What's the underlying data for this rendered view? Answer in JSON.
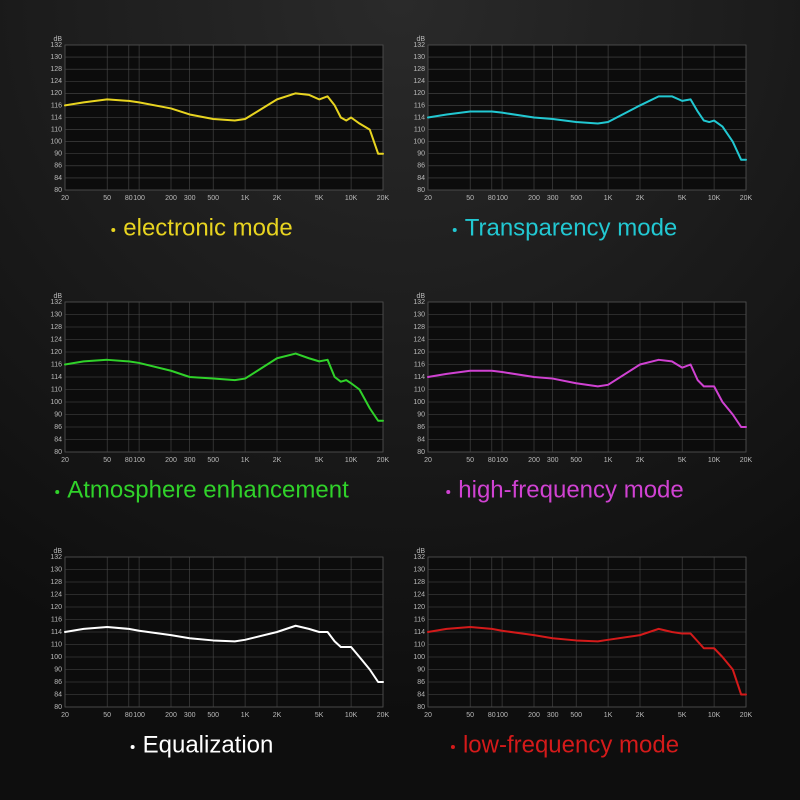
{
  "chart_data": [
    {
      "type": "line",
      "title": "electronic mode",
      "y_label": "dB",
      "x": [
        20,
        30,
        50,
        80,
        100,
        200,
        300,
        500,
        800,
        1000,
        2000,
        3000,
        4000,
        5000,
        6000,
        7000,
        8000,
        9000,
        10000,
        12000,
        15000,
        18000,
        20000
      ],
      "series": [
        {
          "color": "#e8d420",
          "values": [
            116,
            117,
            118,
            117.5,
            117,
            115.5,
            114.5,
            113.5,
            113,
            113.5,
            118,
            120,
            119.5,
            118,
            119,
            116,
            114,
            113,
            114,
            112,
            110,
            90,
            90
          ]
        }
      ],
      "xlim": [
        20,
        20000
      ],
      "x_log": true,
      "ylim": [
        80,
        132
      ],
      "yticks": [
        80,
        84,
        86,
        90,
        100,
        110,
        114,
        116,
        120,
        124,
        128,
        130,
        132
      ],
      "xticks": [
        20,
        50,
        80,
        100,
        200,
        300,
        500,
        {
          "value": 1000,
          "label": "1K"
        },
        {
          "value": 2000,
          "label": "2K"
        },
        {
          "value": 5000,
          "label": "5K"
        },
        {
          "value": 10000,
          "label": "10K"
        },
        {
          "value": 20000,
          "label": "20K"
        }
      ],
      "grid": true
    },
    {
      "type": "line",
      "title": "Transparency mode",
      "y_label": "dB",
      "x": [
        20,
        30,
        50,
        80,
        100,
        200,
        300,
        500,
        800,
        1000,
        2000,
        3000,
        4000,
        5000,
        6000,
        7000,
        8000,
        9000,
        10000,
        12000,
        15000,
        18000,
        20000
      ],
      "series": [
        {
          "color": "#22c8d2",
          "values": [
            114,
            114.5,
            115,
            115,
            114.8,
            114,
            113.5,
            112.5,
            112,
            112.5,
            116,
            119,
            119,
            117.5,
            118,
            115,
            113,
            112.5,
            113,
            111,
            100,
            88,
            88
          ]
        }
      ],
      "xlim": [
        20,
        20000
      ],
      "x_log": true,
      "ylim": [
        80,
        132
      ],
      "yticks": [
        80,
        84,
        86,
        90,
        100,
        110,
        114,
        116,
        120,
        124,
        128,
        130,
        132
      ],
      "xticks": [
        20,
        50,
        80,
        100,
        200,
        300,
        500,
        {
          "value": 1000,
          "label": "1K"
        },
        {
          "value": 2000,
          "label": "2K"
        },
        {
          "value": 5000,
          "label": "5K"
        },
        {
          "value": 10000,
          "label": "10K"
        },
        {
          "value": 20000,
          "label": "20K"
        }
      ],
      "grid": true
    },
    {
      "type": "line",
      "title": "Atmosphere enhancement",
      "y_label": "dB",
      "x": [
        20,
        30,
        50,
        80,
        100,
        200,
        300,
        500,
        800,
        1000,
        2000,
        3000,
        4000,
        5000,
        6000,
        7000,
        8000,
        9000,
        10000,
        12000,
        15000,
        18000,
        20000
      ],
      "series": [
        {
          "color": "#30d22a",
          "values": [
            116,
            117,
            117.5,
            117,
            116.5,
            115,
            114,
            113.5,
            113,
            113.5,
            118,
            119.5,
            118,
            117,
            117.5,
            114,
            112.5,
            113,
            112,
            110,
            95,
            88,
            88
          ]
        }
      ],
      "xlim": [
        20,
        20000
      ],
      "x_log": true,
      "ylim": [
        80,
        132
      ],
      "yticks": [
        80,
        84,
        86,
        90,
        100,
        110,
        114,
        116,
        120,
        124,
        128,
        130,
        132
      ],
      "xticks": [
        20,
        50,
        80,
        100,
        200,
        300,
        500,
        {
          "value": 1000,
          "label": "1K"
        },
        {
          "value": 2000,
          "label": "2K"
        },
        {
          "value": 5000,
          "label": "5K"
        },
        {
          "value": 10000,
          "label": "10K"
        },
        {
          "value": 20000,
          "label": "20K"
        }
      ],
      "grid": true
    },
    {
      "type": "line",
      "title": "high-frequency mode",
      "y_label": "dB",
      "x": [
        20,
        30,
        50,
        80,
        100,
        200,
        300,
        500,
        800,
        1000,
        2000,
        3000,
        4000,
        5000,
        6000,
        7000,
        8000,
        9000,
        10000,
        12000,
        15000,
        18000,
        20000
      ],
      "series": [
        {
          "color": "#d042d2",
          "values": [
            114,
            114.5,
            115,
            115,
            114.8,
            114,
            113.5,
            112,
            111,
            111.5,
            116,
            117.5,
            117,
            115.5,
            116,
            113,
            111,
            111,
            111,
            100,
            90,
            86,
            86
          ]
        }
      ],
      "xlim": [
        20,
        20000
      ],
      "x_log": true,
      "ylim": [
        80,
        132
      ],
      "yticks": [
        80,
        84,
        86,
        90,
        100,
        110,
        114,
        116,
        120,
        124,
        128,
        130,
        132
      ],
      "xticks": [
        20,
        50,
        80,
        100,
        200,
        300,
        500,
        {
          "value": 1000,
          "label": "1K"
        },
        {
          "value": 2000,
          "label": "2K"
        },
        {
          "value": 5000,
          "label": "5K"
        },
        {
          "value": 10000,
          "label": "10K"
        },
        {
          "value": 20000,
          "label": "20K"
        }
      ],
      "grid": true
    },
    {
      "type": "line",
      "title": "Equalization",
      "y_label": "dB",
      "x": [
        20,
        30,
        50,
        80,
        100,
        200,
        300,
        500,
        800,
        1000,
        2000,
        3000,
        4000,
        5000,
        6000,
        7000,
        8000,
        9000,
        10000,
        12000,
        15000,
        18000,
        20000
      ],
      "series": [
        {
          "color": "#ffffff",
          "values": [
            114,
            114.5,
            114.8,
            114.5,
            114.2,
            113,
            112,
            111.3,
            111,
            111.5,
            114,
            115,
            114.5,
            114,
            114,
            111,
            108,
            108,
            108,
            100,
            90,
            86,
            86
          ]
        }
      ],
      "xlim": [
        20,
        20000
      ],
      "x_log": true,
      "ylim": [
        80,
        132
      ],
      "yticks": [
        80,
        84,
        86,
        90,
        100,
        110,
        114,
        116,
        120,
        124,
        128,
        130,
        132
      ],
      "xticks": [
        20,
        50,
        80,
        100,
        200,
        300,
        500,
        {
          "value": 1000,
          "label": "1K"
        },
        {
          "value": 2000,
          "label": "2K"
        },
        {
          "value": 5000,
          "label": "5K"
        },
        {
          "value": 10000,
          "label": "10K"
        },
        {
          "value": 20000,
          "label": "20K"
        }
      ],
      "grid": true
    },
    {
      "type": "line",
      "title": "low-frequency mode",
      "y_label": "dB",
      "x": [
        20,
        30,
        50,
        80,
        100,
        200,
        300,
        500,
        800,
        1000,
        2000,
        3000,
        4000,
        5000,
        6000,
        7000,
        8000,
        9000,
        10000,
        12000,
        15000,
        18000,
        20000
      ],
      "series": [
        {
          "color": "#d41a1a",
          "values": [
            114,
            114.5,
            114.8,
            114.5,
            114.2,
            113,
            112,
            111.3,
            111,
            111.5,
            113,
            114.5,
            114,
            113.5,
            113.5,
            111,
            107,
            107,
            107,
            100,
            90,
            84,
            84
          ]
        }
      ],
      "xlim": [
        20,
        20000
      ],
      "x_log": true,
      "ylim": [
        80,
        132
      ],
      "yticks": [
        80,
        84,
        86,
        90,
        100,
        110,
        114,
        116,
        120,
        124,
        128,
        130,
        132
      ],
      "xticks": [
        20,
        50,
        80,
        100,
        200,
        300,
        500,
        {
          "value": 1000,
          "label": "1K"
        },
        {
          "value": 2000,
          "label": "2K"
        },
        {
          "value": 5000,
          "label": "5K"
        },
        {
          "value": 10000,
          "label": "10K"
        },
        {
          "value": 20000,
          "label": "20K"
        }
      ],
      "grid": true
    }
  ]
}
